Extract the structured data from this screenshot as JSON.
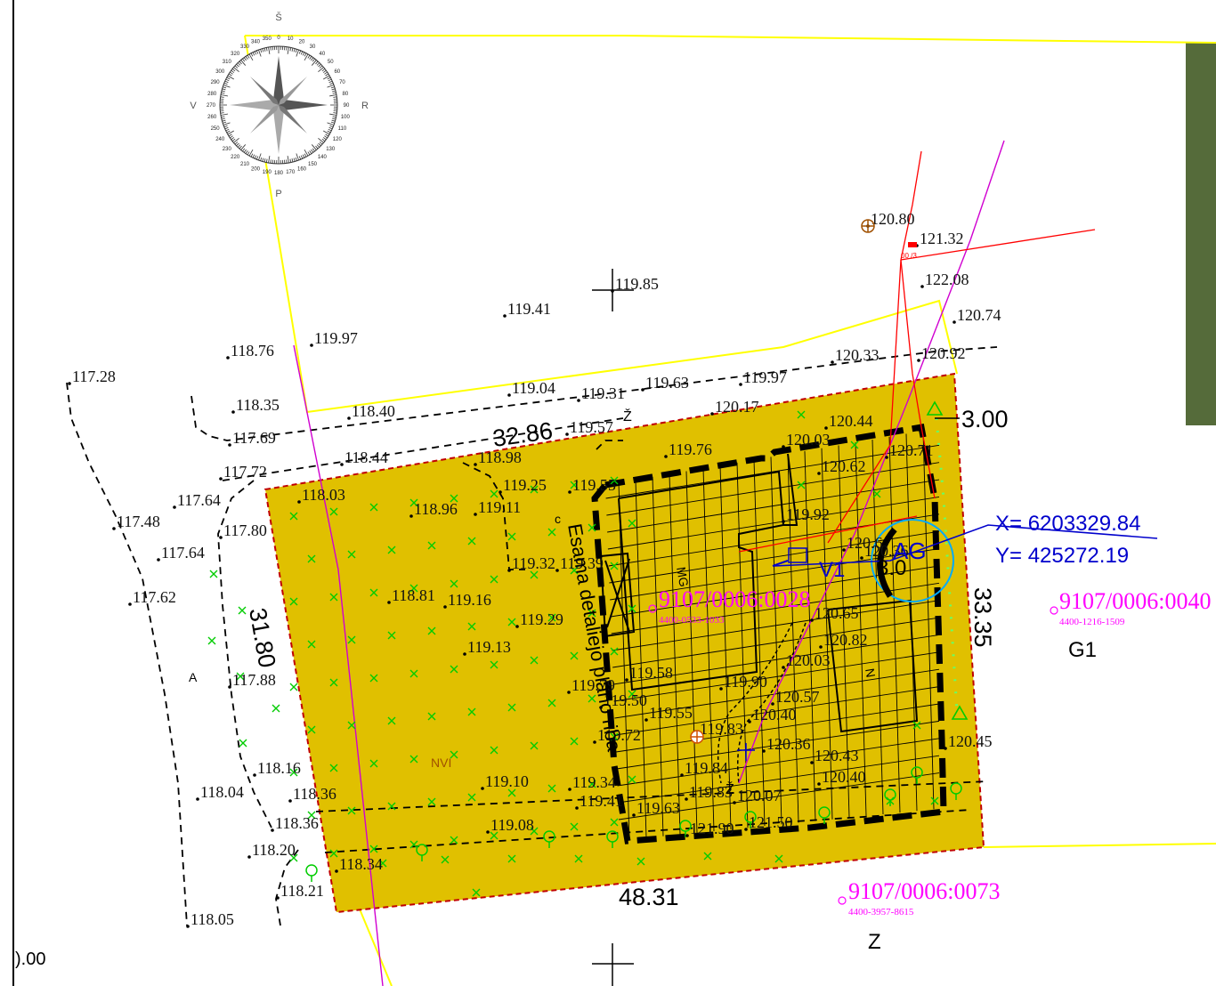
{
  "colors": {
    "plot_fill": "#e0c000",
    "plot_border": "#c00000",
    "neighbor_line": "#ffff00",
    "utility_red": "#ff0000",
    "utility_magenta": "#d000d0",
    "dimension_text": "#000000",
    "parcel_label": "#ff00ff",
    "coordinate_label": "#0000cc",
    "grass_mark": "#00cc00",
    "side_panel": "#556b3a"
  },
  "compass": {
    "north": "Š",
    "south": "P",
    "west": "V",
    "east": "R",
    "degrees": [
      "0",
      "10",
      "20",
      "30",
      "40",
      "50",
      "60",
      "70",
      "80",
      "90",
      "100",
      "110",
      "120",
      "130",
      "140",
      "150",
      "160",
      "170",
      "180",
      "190",
      "200",
      "210",
      "220",
      "230",
      "240",
      "250",
      "260",
      "270",
      "280",
      "290",
      "300",
      "310",
      "320",
      "330",
      "340",
      "350"
    ]
  },
  "elevations": [
    {
      "text": "117.28"
    },
    {
      "text": "118.76"
    },
    {
      "text": "119.97"
    },
    {
      "text": "119.41"
    },
    {
      "text": "119.85"
    },
    {
      "text": "120.80"
    },
    {
      "text": "121.32"
    },
    {
      "text": "122.08"
    },
    {
      "text": "120.74"
    },
    {
      "text": "120.33"
    },
    {
      "text": "120.92"
    },
    {
      "text": "118.35"
    },
    {
      "text": "118.40"
    },
    {
      "text": "119.04"
    },
    {
      "text": "119.31"
    },
    {
      "text": "119.63"
    },
    {
      "text": "119.97"
    },
    {
      "text": "120.17"
    },
    {
      "text": "119.57"
    },
    {
      "text": "120.44"
    },
    {
      "text": "117.69"
    },
    {
      "text": "117.72"
    },
    {
      "text": "118.44"
    },
    {
      "text": "118.98"
    },
    {
      "text": "119.76"
    },
    {
      "text": "120.03"
    },
    {
      "text": "120.71"
    },
    {
      "text": "120.62"
    },
    {
      "text": "117.64"
    },
    {
      "text": "118.03"
    },
    {
      "text": "119.25"
    },
    {
      "text": "119.55"
    },
    {
      "text": "117.48"
    },
    {
      "text": "118.96"
    },
    {
      "text": "119.11"
    },
    {
      "text": "119.92"
    },
    {
      "text": "117.80"
    },
    {
      "text": "120.6"
    },
    {
      "text": "117.64"
    },
    {
      "text": "119.32"
    },
    {
      "text": "119.39"
    },
    {
      "text": "120.36"
    },
    {
      "text": "117.62"
    },
    {
      "text": "118.81"
    },
    {
      "text": "119.16"
    },
    {
      "text": "119.29"
    },
    {
      "text": "120.65"
    },
    {
      "text": "119.13"
    },
    {
      "text": "120.82"
    },
    {
      "text": "120.03"
    },
    {
      "text": "117.88"
    },
    {
      "text": "119.58"
    },
    {
      "text": "119.79"
    },
    {
      "text": "119.90"
    },
    {
      "text": "119.50"
    },
    {
      "text": "120.57"
    },
    {
      "text": "119.55"
    },
    {
      "text": "120.40"
    },
    {
      "text": "119.72"
    },
    {
      "text": "119.83"
    },
    {
      "text": "120.36"
    },
    {
      "text": "120.45"
    },
    {
      "text": "120.43"
    },
    {
      "text": "118.16"
    },
    {
      "text": "119.84"
    },
    {
      "text": "120.40"
    },
    {
      "text": "118.04"
    },
    {
      "text": "118.36"
    },
    {
      "text": "119.10"
    },
    {
      "text": "119.34"
    },
    {
      "text": "119.83"
    },
    {
      "text": "120.07"
    },
    {
      "text": "119.41"
    },
    {
      "text": "119.63"
    },
    {
      "text": "118.36"
    },
    {
      "text": "119.08"
    },
    {
      "text": "121.90"
    },
    {
      "text": "121.50"
    },
    {
      "text": "118.20"
    },
    {
      "text": "118.34"
    },
    {
      "text": "118.21"
    },
    {
      "text": "118.05"
    }
  ],
  "dimensions": {
    "north_side": "32.86",
    "east_top": "3.00",
    "west_side": "31.80",
    "east_side": "33.35",
    "south_side": "48.31"
  },
  "street_marks": {
    "z_top": "Ž",
    "z_bottom": "Ž"
  },
  "labels": {
    "note_rotated": "Esama detaliejo plano riba",
    "letter_c": "c",
    "letter_a": "A",
    "building_mg": "MG",
    "building_n": "N",
    "ag": "AG",
    "ag_value": "3.0",
    "v1": "V1",
    "nvi": "NVI",
    "bottom_left_value": ").00",
    "pole_tag": "00 /3"
  },
  "coordinates": {
    "x": "X= 6203329.84",
    "y": "Y= 425272.19"
  },
  "parcels": [
    {
      "id": "9107/0006:0028",
      "sub": "4400-0533-1033"
    },
    {
      "id": "9107/0006:0040",
      "sub": "4400-1216-1509",
      "zone": "G1"
    },
    {
      "id": "9107/0006:0073",
      "sub": "4400-3957-8615",
      "zone": "Z"
    }
  ]
}
